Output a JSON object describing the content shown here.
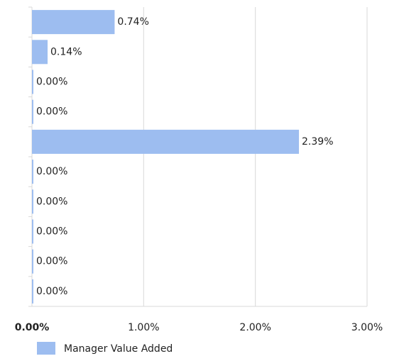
{
  "chart_data": {
    "type": "bar",
    "orientation": "horizontal",
    "categories": [
      null,
      null,
      null,
      null,
      null,
      null,
      null,
      null,
      null,
      null
    ],
    "series": [
      {
        "name": "Manager Value Added",
        "color": "#9dbdf0",
        "values": [
          0.74,
          0.14,
          0,
          0,
          2.39,
          0,
          0,
          0,
          0,
          0
        ],
        "value_labels": [
          "0.74%",
          "0.14%",
          "0.00%",
          "0.00%",
          "2.39%",
          "0.00%",
          "0.00%",
          "0.00%",
          "0.00%",
          "0.00%"
        ]
      }
    ],
    "xlim": [
      0,
      3
    ],
    "xticks": [
      {
        "value": 0,
        "label": "0.00%"
      },
      {
        "value": 1,
        "label": "1.00%"
      },
      {
        "value": 2,
        "label": "2.00%"
      },
      {
        "value": 3,
        "label": "3.00%"
      }
    ],
    "grid": true,
    "legend": "bottom"
  }
}
